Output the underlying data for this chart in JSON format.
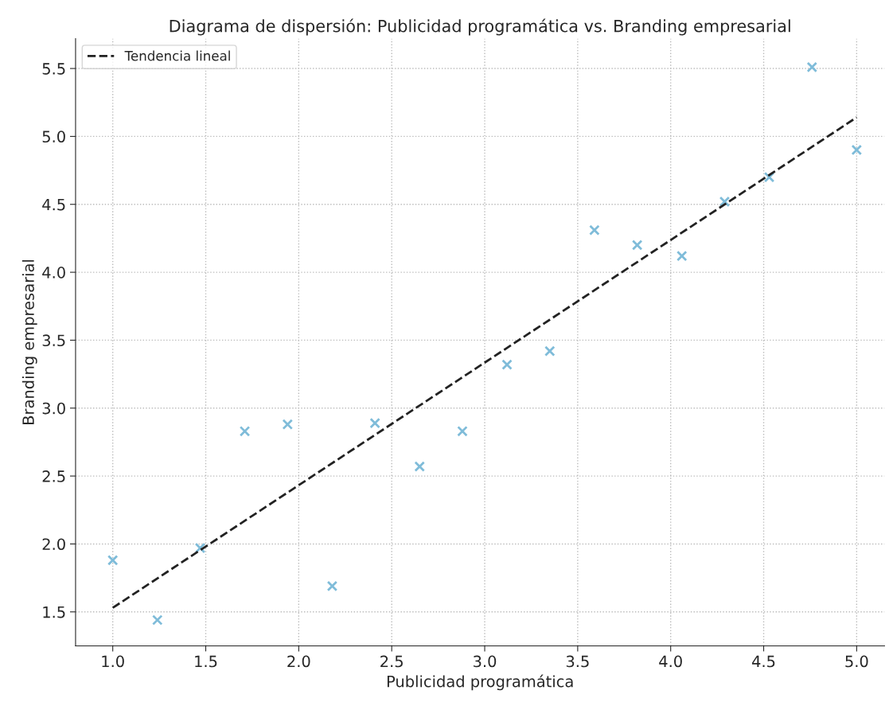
{
  "chart_data": {
    "type": "scatter",
    "title": "Diagrama de dispersión: Publicidad programática vs. Branding empresarial",
    "xlabel": "Publicidad programática",
    "ylabel": "Branding empresarial",
    "x": [
      1.0,
      1.24,
      1.47,
      1.71,
      1.94,
      2.18,
      2.41,
      2.65,
      2.88,
      3.12,
      3.35,
      3.59,
      3.82,
      4.06,
      4.29,
      4.53,
      4.76,
      5.0
    ],
    "series": [
      {
        "color": "#7fbcd9",
        "marker": "cross",
        "values": [
          1.88,
          1.44,
          1.97,
          2.83,
          2.88,
          1.69,
          2.89,
          2.57,
          2.83,
          3.32,
          3.42,
          4.31,
          4.2,
          4.12,
          4.52,
          4.7,
          5.51,
          4.9
        ]
      },
      {
        "type": "line",
        "name": "Tendencia lineal",
        "color": "#222222",
        "line_style": "dashed",
        "marker": "none",
        "x": [
          1.0,
          5.0
        ],
        "values": [
          1.53,
          5.14
        ]
      }
    ],
    "xlim": [
      0.8,
      5.15
    ],
    "ylim": [
      1.25,
      5.72
    ],
    "xticks": [
      {
        "value": 1,
        "label": "1.0"
      },
      1.5,
      {
        "value": 2,
        "label": "2.0"
      },
      2.5,
      {
        "value": 3,
        "label": "3.0"
      },
      3.5,
      {
        "value": 4,
        "label": "4.0"
      },
      4.5,
      {
        "value": 5,
        "label": "5.0"
      }
    ],
    "yticks": [
      1.5,
      {
        "value": 2,
        "label": "2.0"
      },
      2.5,
      {
        "value": 3,
        "label": "3.0"
      },
      3.5,
      {
        "value": 4,
        "label": "4.0"
      },
      4.5,
      {
        "value": 5,
        "label": "5.0"
      },
      5.5
    ],
    "grid": true,
    "legend": "top left"
  }
}
